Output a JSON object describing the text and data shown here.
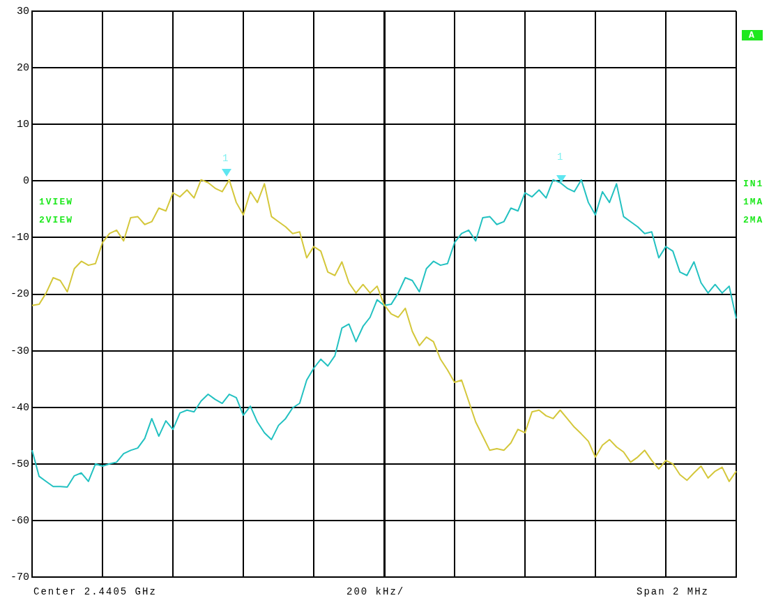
{
  "chart_data": {
    "type": "line",
    "categories": [
      null,
      null,
      null,
      null,
      null,
      null,
      null,
      null,
      null,
      null,
      null,
      null,
      null,
      null,
      null,
      null,
      null,
      null,
      null,
      null,
      null,
      null,
      null,
      null,
      null,
      null,
      null,
      null,
      null,
      null,
      null,
      null,
      null,
      null,
      null,
      null,
      null,
      null,
      null,
      null,
      null,
      null,
      null,
      null,
      null,
      null,
      null,
      null,
      null,
      null,
      null,
      null,
      null,
      null,
      null,
      null,
      null,
      null,
      null,
      null,
      null,
      null,
      null,
      null,
      null,
      null,
      null,
      null,
      null,
      null,
      null,
      null,
      null,
      null,
      null,
      null,
      null,
      null,
      null,
      null,
      null,
      null,
      null,
      null,
      null,
      null,
      null,
      null,
      null,
      null,
      null,
      null,
      null,
      null,
      null,
      null,
      null,
      null,
      null,
      null,
      null
    ],
    "series": [
      {
        "color": "#d4c73a",
        "values": [
          -22,
          -21.8,
          -19.8,
          -17.1,
          -17.6,
          -19.6,
          -15.5,
          -14.2,
          -14.9,
          -14.6,
          -10.9,
          -9.3,
          -8.7,
          -10.6,
          -6.5,
          -6.3,
          -7.7,
          -7.2,
          -4.8,
          -5.3,
          -2.1,
          -2.8,
          -1.6,
          -3,
          0.2,
          -0.3,
          -1.3,
          -1.9,
          0.2,
          -3.8,
          -6,
          -1.9,
          -3.8,
          -0.5,
          -6.3,
          -7.2,
          -8.1,
          -9.3,
          -9,
          -13.6,
          -11.6,
          -12.4,
          -16.1,
          -16.7,
          -14.3,
          -18,
          -19.8,
          -18.3,
          -19.8,
          -18.6,
          -21.9,
          -23.5,
          -24.1,
          -22.5,
          -26.6,
          -29.1,
          -27.6,
          -28.4,
          -31.5,
          -33.4,
          -35.6,
          -35.2,
          -38.9,
          -42.6,
          -45.1,
          -47.6,
          -47.3,
          -47.6,
          -46.3,
          -43.9,
          -44.5,
          -40.8,
          -40.5,
          -41.5,
          -42,
          -40.5,
          -42,
          -43.5,
          -44.7,
          -46,
          -48.8,
          -46.7,
          -45.7,
          -47,
          -47.9,
          -49.7,
          -48.8,
          -47.6,
          -49.4,
          -50.9,
          -49.4,
          -50,
          -51.9,
          -52.9,
          -51.6,
          -50.4,
          -52.5,
          -51.3,
          -50.6,
          -53.1,
          -51.3
        ]
      },
      {
        "color": "#22c1c1",
        "values": [
          -47.6,
          -52.2,
          -53.1,
          -54,
          -54,
          -54.1,
          -52.1,
          -51.6,
          -53.1,
          -50,
          -50.4,
          -50,
          -49.7,
          -48.2,
          -47.6,
          -47.2,
          -45.5,
          -42,
          -45.1,
          -42.4,
          -43.9,
          -41,
          -40.5,
          -40.8,
          -38.9,
          -37.7,
          -38.6,
          -39.3,
          -37.7,
          -38.3,
          -41.4,
          -39.8,
          -42.6,
          -44.5,
          -45.7,
          -43.2,
          -42,
          -40.1,
          -39.3,
          -35.2,
          -33.1,
          -31.5,
          -32.7,
          -30.9,
          -26,
          -25.3,
          -28.4,
          -25.7,
          -24.1,
          -21,
          -22,
          -21.8,
          -19.8,
          -17.1,
          -17.6,
          -19.6,
          -15.5,
          -14.2,
          -14.9,
          -14.6,
          -10.9,
          -9.3,
          -8.7,
          -10.6,
          -6.5,
          -6.3,
          -7.7,
          -7.2,
          -4.8,
          -5.3,
          -2.1,
          -2.8,
          -1.6,
          -3,
          0.2,
          -0.3,
          -1.3,
          -1.9,
          0.2,
          -3.8,
          -6,
          -1.9,
          -3.8,
          -0.5,
          -6.3,
          -7.2,
          -8.1,
          -9.3,
          -9,
          -13.6,
          -11.6,
          -12.4,
          -16.1,
          -16.7,
          -14.3,
          -18,
          -19.8,
          -18.3,
          -19.8,
          -18.6,
          -24.3
        ]
      }
    ],
    "ylim": [
      -70,
      30
    ],
    "yticks": [
      -70,
      -60,
      -50,
      -40,
      -30,
      -20,
      -10,
      0,
      10,
      20,
      30
    ],
    "grid": true,
    "tick_labels": "y",
    "legend": false,
    "marker": "none",
    "line_style": "solid",
    "annotations": [
      "Center 2.4405 GHz",
      "200 kHz/",
      "Span 2 MHz",
      "A",
      "1VIEW",
      "2VIEW",
      "IN1",
      "1MA",
      "2MA",
      "1",
      "1"
    ]
  }
}
